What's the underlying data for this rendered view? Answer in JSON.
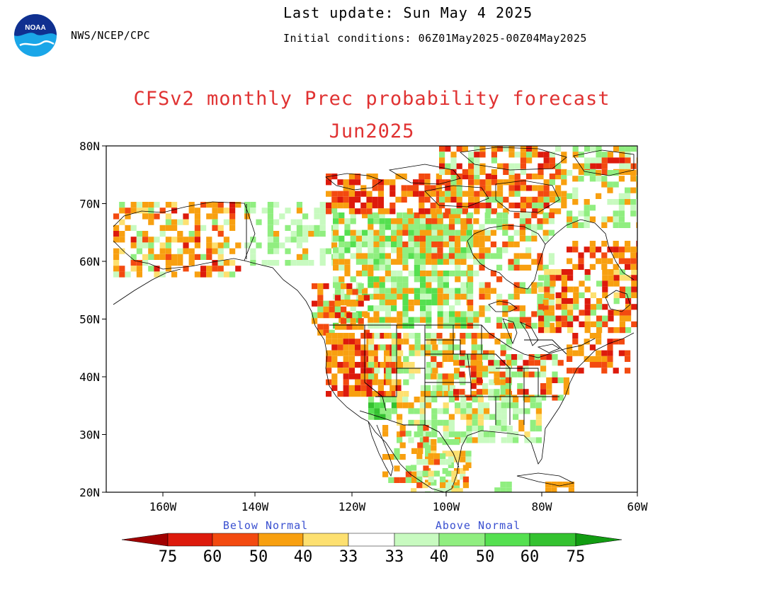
{
  "header": {
    "agency": "NWS/NCEP/CPC",
    "last_update": "Last update: Sun May 4 2025",
    "initial_conditions": "Initial conditions: 06Z01May2025-00Z04May2025",
    "logo_text": "NOAA"
  },
  "title": {
    "line1": "CFSv2 monthly Prec probability forecast",
    "line2": "Jun2025"
  },
  "map": {
    "extent": {
      "lon": [
        -170,
        -60
      ],
      "lat": [
        20,
        80
      ]
    },
    "lat_ticks": [
      "80N",
      "70N",
      "60N",
      "50N",
      "40N",
      "30N",
      "20N"
    ],
    "lon_ticks": [
      "160W",
      "140W",
      "120W",
      "100W",
      "80W",
      "60W"
    ]
  },
  "colorbar": {
    "below_label": "Below Normal",
    "above_label": "Above Normal",
    "below_colors": [
      "#a00000",
      "#dd1a0c",
      "#f34a10",
      "#f8a010",
      "#fde070"
    ],
    "above_colors": [
      "#c8fac0",
      "#90ee80",
      "#55e050",
      "#34c230",
      "#129c12"
    ],
    "values": [
      "75",
      "60",
      "50",
      "40",
      "33",
      "33",
      "40",
      "50",
      "60",
      "75"
    ]
  },
  "colors": {
    "title": "#e03232",
    "category_label": "#3a50d0"
  }
}
